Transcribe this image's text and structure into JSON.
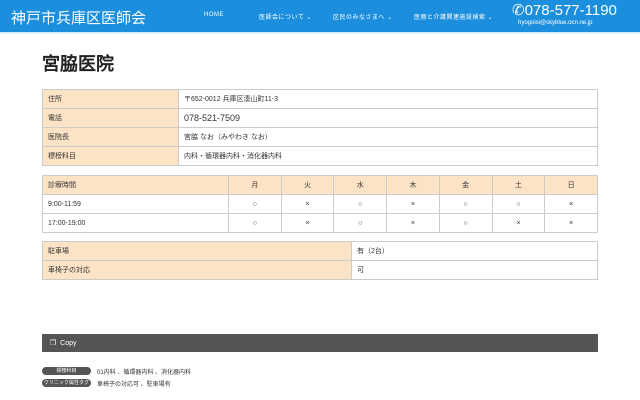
{
  "header": {
    "logo": "神戸市兵庫区医師会",
    "nav": [
      "HOME",
      "医師会について ⌄",
      "区民のみなさまへ ⌄",
      "医療と介護関連施設検索 ⌄"
    ],
    "phone": "078-577-1190",
    "email": "hyogoisi@skyblue.ocn.ne.jp",
    "color": "#1b8fdd"
  },
  "title": "宮脇医院",
  "info": [
    {
      "label": "住所",
      "value": "〒652-0012 兵庫区湊山町11-3"
    },
    {
      "label": "電話",
      "value": "078-521-7509"
    },
    {
      "label": "医院長",
      "value": "宮脇 なお（みやわき なお）"
    },
    {
      "label": "標榜科目",
      "value": "内科・循環器内科・消化器内科"
    }
  ],
  "schedule": {
    "header": "診療時間",
    "days": [
      "月",
      "火",
      "水",
      "木",
      "金",
      "土",
      "日"
    ],
    "rows": [
      {
        "time": "9:00-11:59",
        "marks": [
          "○",
          "×",
          "○",
          "×",
          "○",
          "○",
          "×"
        ]
      },
      {
        "time": "17:00-19:00",
        "marks": [
          "○",
          "×",
          "○",
          "×",
          "○",
          "×",
          "×"
        ]
      }
    ]
  },
  "facility": [
    {
      "label": "駐車場",
      "value": "有（2台）"
    },
    {
      "label": "車椅子の対応",
      "value": "可"
    }
  ],
  "copy_label": "Copy",
  "tags": [
    {
      "name": "標榜科目",
      "value": "01内科 、循環器内科 、消化器内科"
    },
    {
      "name": "クリニック属性タグ",
      "value": "車椅子の対応可 、駐車場有"
    }
  ]
}
